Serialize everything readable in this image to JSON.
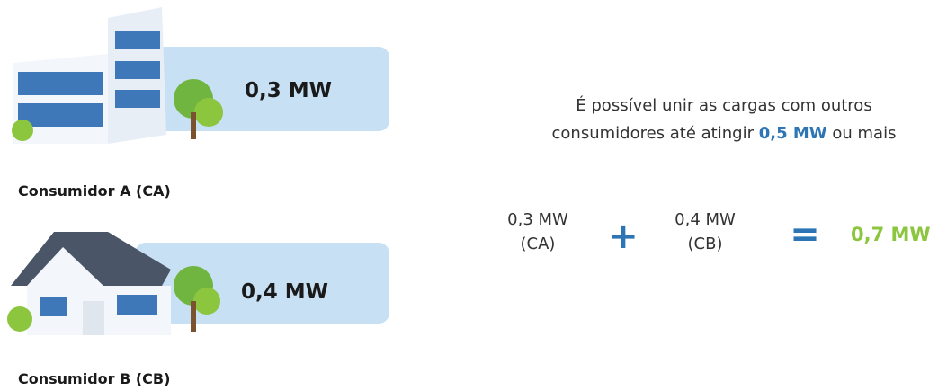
{
  "consumers": [
    {
      "value": "0,3 MW",
      "label": "Consumidor A (CA)"
    },
    {
      "value": "0,4 MW",
      "label": "Consumidor B (CB)"
    }
  ],
  "note": {
    "lines": [
      "É possível unir as cargas com outros",
      "consumidores até atingir"
    ],
    "highlight": "0,5 MW",
    "after": "ou mais"
  },
  "equation": {
    "terms": [
      {
        "value": "0,3 MW",
        "tag": "(CA)"
      },
      {
        "value": "0,4 MW",
        "tag": "(CB)"
      }
    ],
    "plus": "+",
    "equals": "=",
    "result": "0,7 MW"
  }
}
